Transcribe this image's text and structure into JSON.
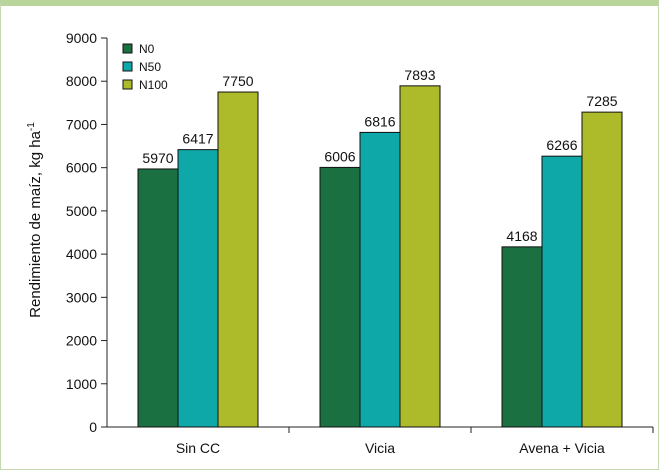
{
  "chart_data": {
    "type": "bar",
    "title": "",
    "xlabel": "",
    "ylabel": "Rendimiento de maíz, kg ha",
    "ylabel_superscript": "-1",
    "ylim": [
      0,
      9000
    ],
    "yticks": [
      0,
      1000,
      2000,
      3000,
      4000,
      5000,
      6000,
      7000,
      8000,
      9000
    ],
    "categories": [
      "Sin CC",
      "Vicia",
      "Avena + Vicia"
    ],
    "series": [
      {
        "name": "N0",
        "color": "#1a7040",
        "values": [
          5970,
          6006,
          4168
        ]
      },
      {
        "name": "N50",
        "color": "#0fa8a8",
        "values": [
          6417,
          6816,
          6266
        ]
      },
      {
        "name": "N100",
        "color": "#adbb2a",
        "values": [
          7750,
          7893,
          7285
        ]
      }
    ],
    "legend_position": "top-left",
    "grid": false,
    "data_labels": true
  }
}
